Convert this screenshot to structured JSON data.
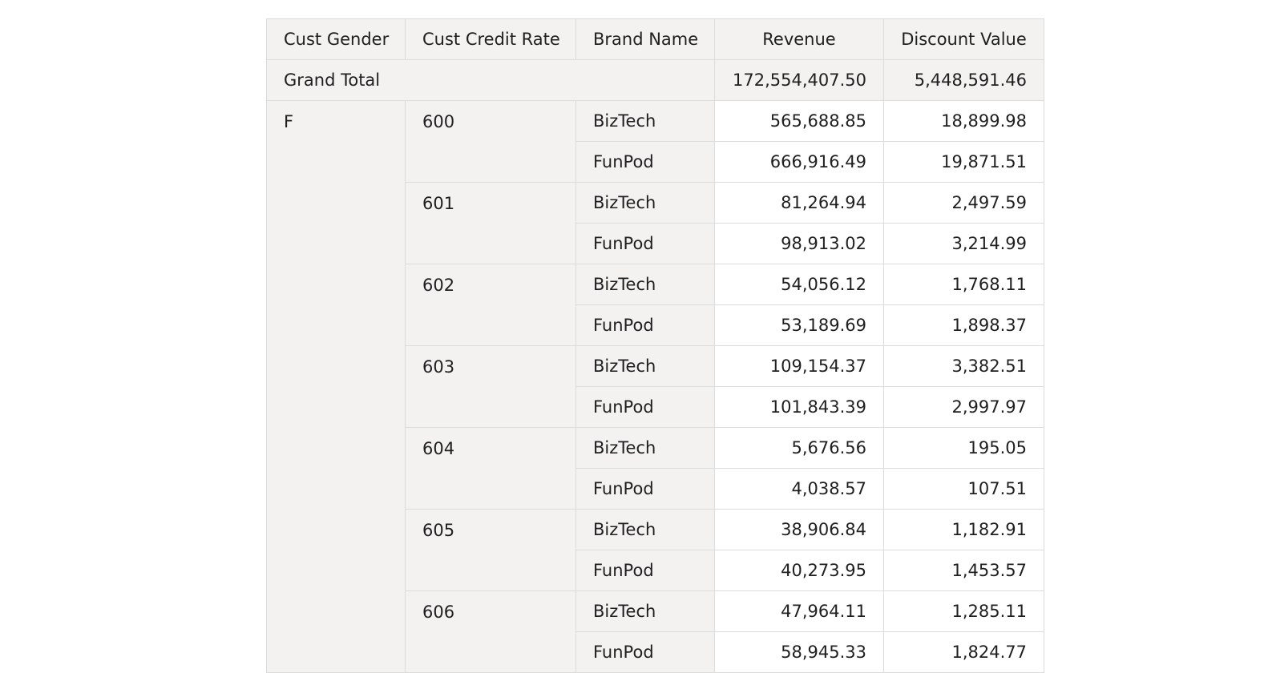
{
  "table": {
    "headers": {
      "gender": "Cust Gender",
      "credit_rate": "Cust Credit Rate",
      "brand": "Brand Name",
      "revenue": "Revenue",
      "discount": "Discount Value"
    },
    "grand_total": {
      "label": "Grand Total",
      "revenue": "172,554,407.50",
      "discount": "5,448,591.46"
    },
    "gender_value": "F",
    "groups": [
      {
        "rate": "600",
        "rows": [
          {
            "brand": "BizTech",
            "revenue": "565,688.85",
            "discount": "18,899.98"
          },
          {
            "brand": "FunPod",
            "revenue": "666,916.49",
            "discount": "19,871.51"
          }
        ]
      },
      {
        "rate": "601",
        "rows": [
          {
            "brand": "BizTech",
            "revenue": "81,264.94",
            "discount": "2,497.59"
          },
          {
            "brand": "FunPod",
            "revenue": "98,913.02",
            "discount": "3,214.99"
          }
        ]
      },
      {
        "rate": "602",
        "rows": [
          {
            "brand": "BizTech",
            "revenue": "54,056.12",
            "discount": "1,768.11"
          },
          {
            "brand": "FunPod",
            "revenue": "53,189.69",
            "discount": "1,898.37"
          }
        ]
      },
      {
        "rate": "603",
        "rows": [
          {
            "brand": "BizTech",
            "revenue": "109,154.37",
            "discount": "3,382.51"
          },
          {
            "brand": "FunPod",
            "revenue": "101,843.39",
            "discount": "2,997.97"
          }
        ]
      },
      {
        "rate": "604",
        "rows": [
          {
            "brand": "BizTech",
            "revenue": "5,676.56",
            "discount": "195.05"
          },
          {
            "brand": "FunPod",
            "revenue": "4,038.57",
            "discount": "107.51"
          }
        ]
      },
      {
        "rate": "605",
        "rows": [
          {
            "brand": "BizTech",
            "revenue": "38,906.84",
            "discount": "1,182.91"
          },
          {
            "brand": "FunPod",
            "revenue": "40,273.95",
            "discount": "1,453.57"
          }
        ]
      },
      {
        "rate": "606",
        "rows": [
          {
            "brand": "BizTech",
            "revenue": "47,964.11",
            "discount": "1,285.11"
          },
          {
            "brand": "FunPod",
            "revenue": "58,945.33",
            "discount": "1,824.77"
          }
        ]
      }
    ]
  },
  "colors": {
    "header_bg": "#f3f2f1",
    "cell_bg": "#ffffff",
    "border": "#dcdcdc",
    "text": "#1f1f1f"
  }
}
